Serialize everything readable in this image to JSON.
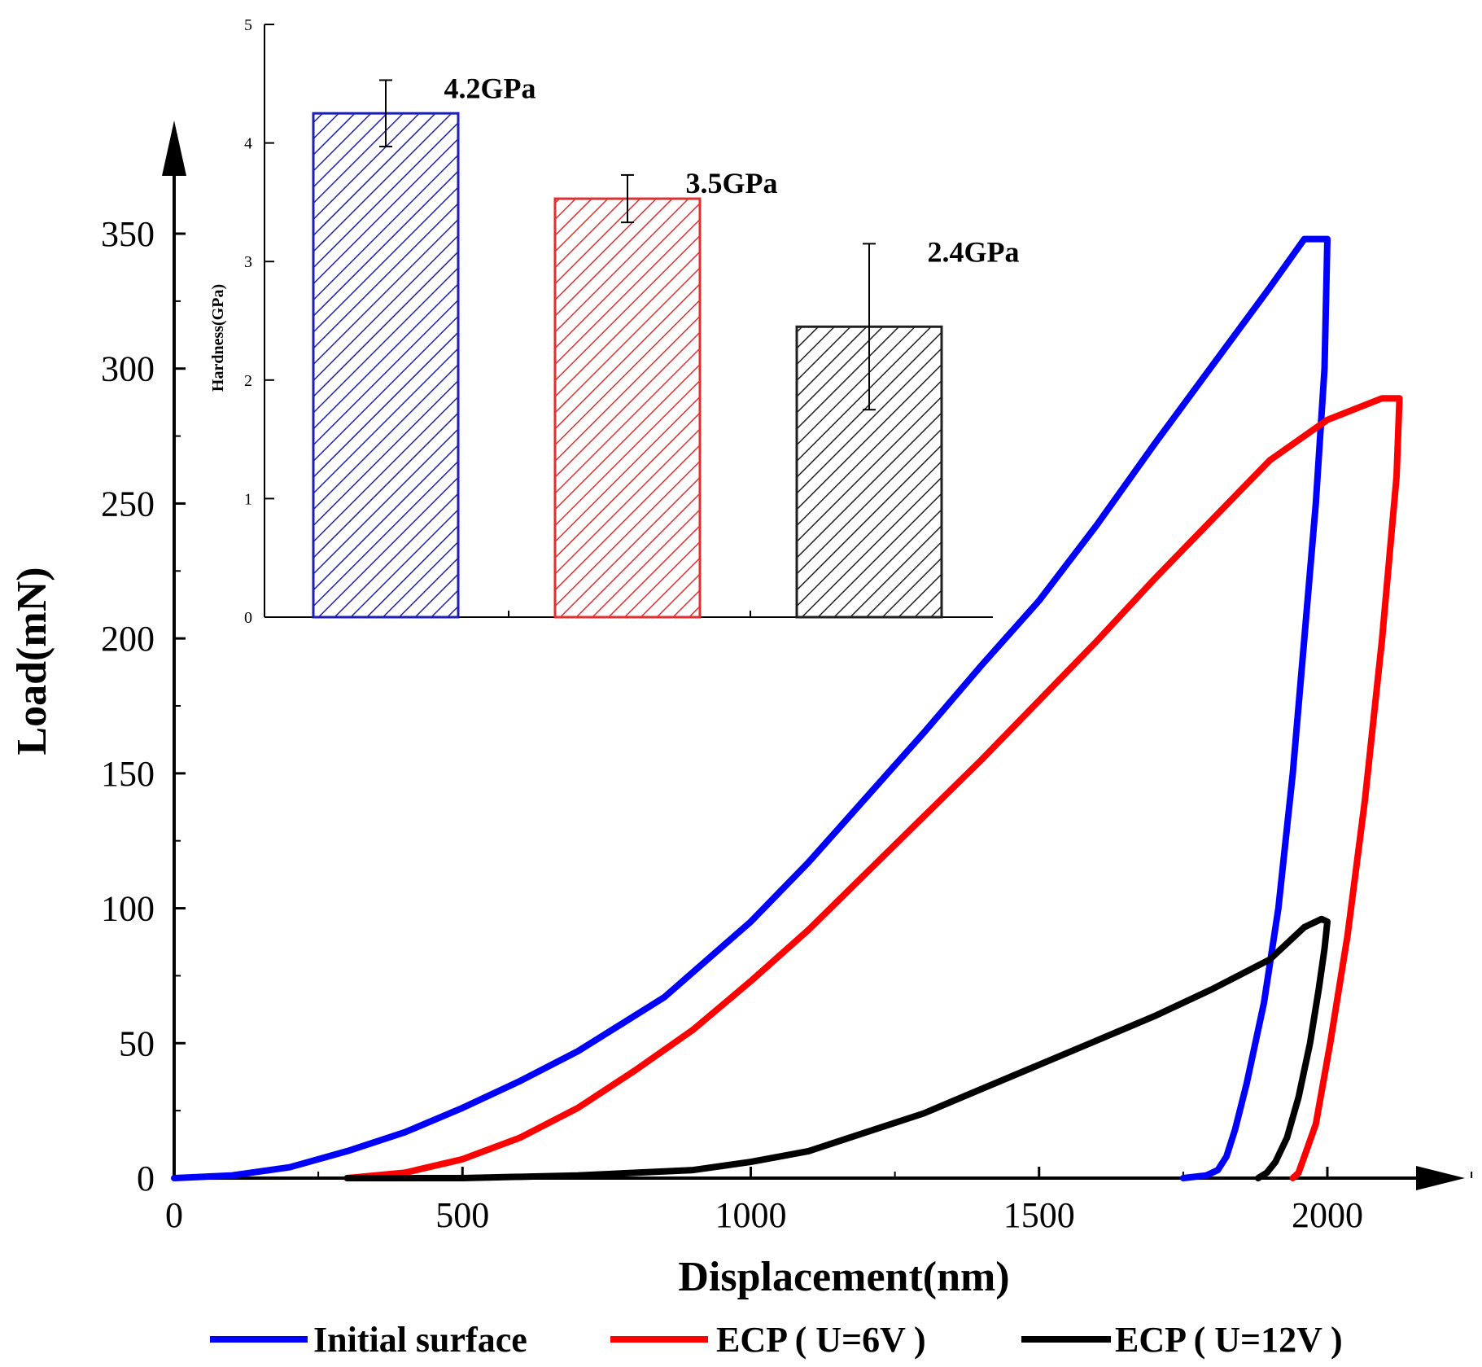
{
  "chart_data": [
    {
      "type": "line",
      "xlabel": "Displacement(nm)",
      "ylabel": "Load(mN)",
      "xlim": [
        0,
        2150
      ],
      "ylim": [
        0,
        350
      ],
      "x_ticks": [
        0,
        500,
        1000,
        1500,
        2000
      ],
      "y_ticks": [
        0,
        50,
        100,
        150,
        200,
        250,
        300,
        350
      ],
      "x_tick_labels": [
        "0",
        "500",
        "1000",
        "1500",
        "2000"
      ],
      "y_tick_labels": [
        "0",
        "50",
        "100",
        "150",
        "200",
        "250",
        "300",
        "350"
      ],
      "legend_position": "bottom",
      "series": [
        {
          "name": "Initial surface",
          "color": "#0000ff",
          "points": [
            [
              0,
              0
            ],
            [
              100,
              1
            ],
            [
              200,
              4
            ],
            [
              300,
              10
            ],
            [
              400,
              17
            ],
            [
              500,
              26
            ],
            [
              600,
              36
            ],
            [
              700,
              47
            ],
            [
              850,
              67
            ],
            [
              1000,
              95
            ],
            [
              1100,
              117
            ],
            [
              1200,
              141
            ],
            [
              1300,
              165
            ],
            [
              1400,
              190
            ],
            [
              1500,
              214
            ],
            [
              1600,
              242
            ],
            [
              1700,
              272
            ],
            [
              1800,
              301
            ],
            [
              1900,
              330
            ],
            [
              1960,
              348
            ],
            [
              2000,
              348
            ],
            [
              1995,
              300
            ],
            [
              1980,
              250
            ],
            [
              1960,
              200
            ],
            [
              1940,
              150
            ],
            [
              1915,
              100
            ],
            [
              1890,
              65
            ],
            [
              1860,
              35
            ],
            [
              1840,
              18
            ],
            [
              1825,
              8
            ],
            [
              1810,
              3
            ],
            [
              1790,
              1
            ],
            [
              1750,
              0
            ]
          ]
        },
        {
          "name": "ECP ( U=6V )",
          "color": "#ff0000",
          "points": [
            [
              300,
              0
            ],
            [
              400,
              2
            ],
            [
              500,
              7
            ],
            [
              600,
              15
            ],
            [
              700,
              26
            ],
            [
              800,
              40
            ],
            [
              900,
              55
            ],
            [
              1000,
              73
            ],
            [
              1100,
              92
            ],
            [
              1200,
              113
            ],
            [
              1300,
              134
            ],
            [
              1400,
              155
            ],
            [
              1500,
              177
            ],
            [
              1600,
              199
            ],
            [
              1700,
              222
            ],
            [
              1800,
              244
            ],
            [
              1900,
              266
            ],
            [
              2000,
              281
            ],
            [
              2095,
              289
            ],
            [
              2125,
              289
            ],
            [
              2120,
              260
            ],
            [
              2095,
              200
            ],
            [
              2065,
              140
            ],
            [
              2035,
              90
            ],
            [
              2005,
              50
            ],
            [
              1980,
              20
            ],
            [
              1960,
              8
            ],
            [
              1950,
              2
            ],
            [
              1940,
              0
            ]
          ]
        },
        {
          "name": "ECP ( U=12V )",
          "color": "#000000",
          "points": [
            [
              300,
              0
            ],
            [
              500,
              0
            ],
            [
              700,
              1
            ],
            [
              900,
              3
            ],
            [
              1000,
              6
            ],
            [
              1100,
              10
            ],
            [
              1200,
              17
            ],
            [
              1300,
              24
            ],
            [
              1400,
              33
            ],
            [
              1500,
              42
            ],
            [
              1600,
              51
            ],
            [
              1700,
              60
            ],
            [
              1800,
              70
            ],
            [
              1900,
              81
            ],
            [
              1960,
              93
            ],
            [
              1990,
              96
            ],
            [
              2000,
              95
            ],
            [
              1995,
              85
            ],
            [
              1985,
              70
            ],
            [
              1970,
              50
            ],
            [
              1950,
              30
            ],
            [
              1930,
              15
            ],
            [
              1910,
              6
            ],
            [
              1895,
              2
            ],
            [
              1880,
              0
            ]
          ]
        }
      ]
    },
    {
      "type": "bar",
      "ylabel": "Hardness(GPa)",
      "ylim": [
        0,
        5
      ],
      "y_ticks": [
        0,
        1,
        2,
        3,
        4,
        5
      ],
      "y_tick_labels": [
        "0",
        "1",
        "2",
        "3",
        "4",
        "5"
      ],
      "values": [
        4.25,
        3.53,
        2.45
      ],
      "errors": [
        0.28,
        0.2,
        0.7
      ],
      "colors": [
        "#1f1fb0",
        "#e03030",
        "#202020"
      ],
      "labels": [
        "4.2GPa",
        "3.5GPa",
        "2.4GPa"
      ],
      "pattern": "diagonal-hatch"
    }
  ]
}
